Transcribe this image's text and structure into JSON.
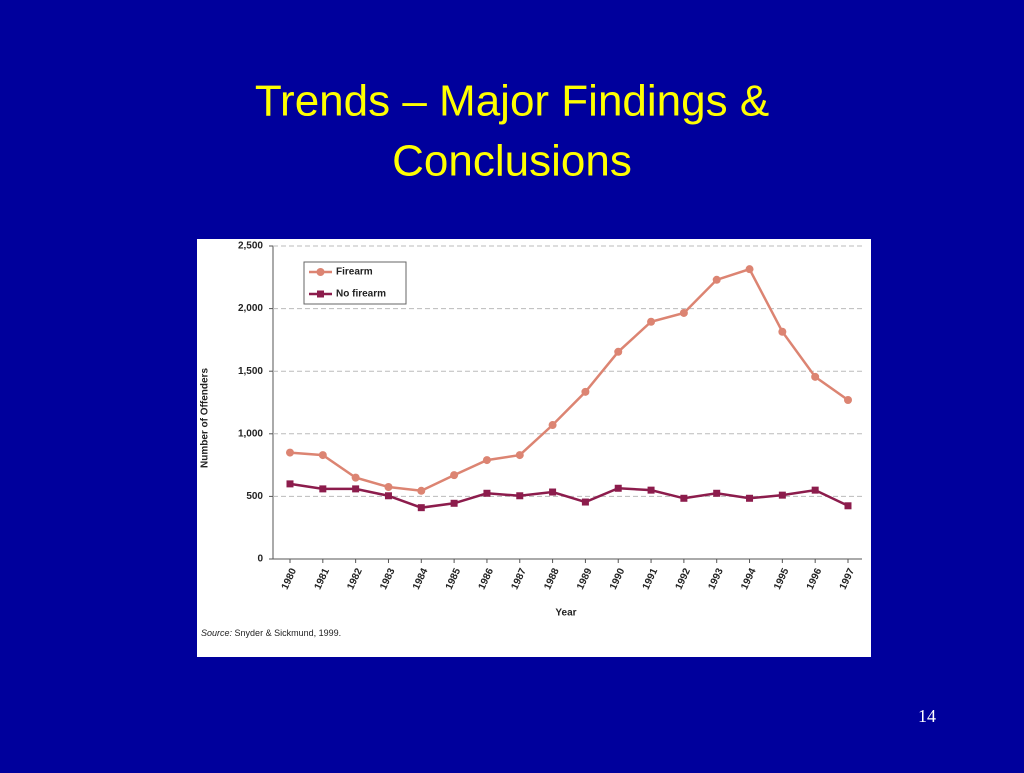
{
  "slide": {
    "title_lines": [
      "Trends – Major Findings &",
      "Conclusions"
    ],
    "page_number": "14"
  },
  "chart_data": {
    "type": "line",
    "x_label": "Year",
    "y_label": "Number of Offenders",
    "source_label": "Source:",
    "source": "Snyder & Sickmund, 1999.",
    "categories": [
      "1980",
      "1981",
      "1982",
      "1983",
      "1984",
      "1985",
      "1986",
      "1987",
      "1988",
      "1989",
      "1990",
      "1991",
      "1992",
      "1993",
      "1994",
      "1995",
      "1996",
      "1997"
    ],
    "series": [
      {
        "name": "Firearm",
        "color": "#dc8472",
        "marker": "circle",
        "values": [
          850,
          830,
          650,
          575,
          545,
          670,
          790,
          830,
          1070,
          1335,
          1655,
          1895,
          1965,
          2230,
          2315,
          1815,
          1455,
          1270
        ]
      },
      {
        "name": "No firearm",
        "color": "#8c1c4c",
        "marker": "square",
        "values": [
          600,
          560,
          560,
          505,
          410,
          445,
          525,
          505,
          535,
          455,
          565,
          550,
          485,
          525,
          485,
          510,
          550,
          425
        ]
      }
    ],
    "ylim": [
      0,
      2500
    ],
    "yticks": [
      0,
      500,
      {
        "value": 1000,
        "label": "1,000"
      },
      {
        "value": 1500,
        "label": "1,500"
      },
      {
        "value": 2000,
        "label": "2,000"
      },
      {
        "value": 2500,
        "label": "2,500"
      }
    ],
    "grid": true,
    "legend": "upper left"
  }
}
